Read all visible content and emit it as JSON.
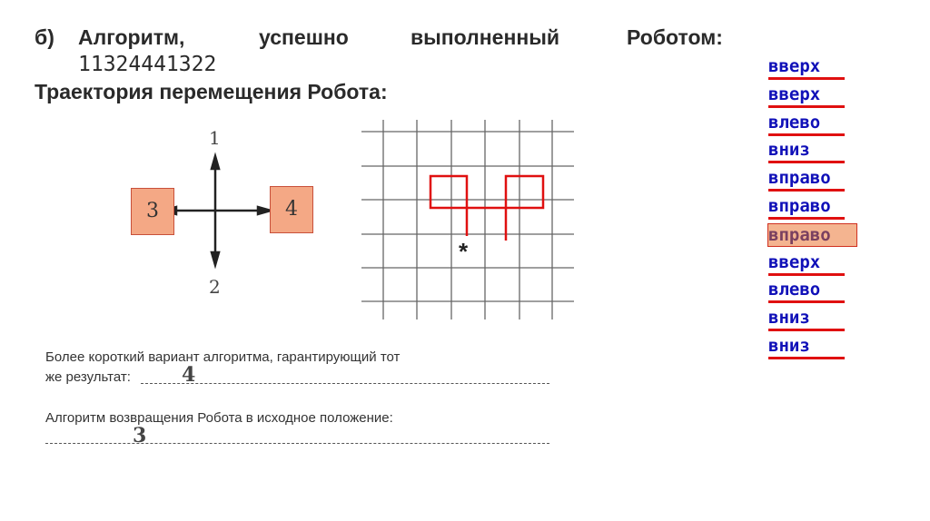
{
  "task": {
    "label": "б)",
    "line1_words": [
      "Алгоритм,",
      "успешно",
      "выполненный",
      "Роботом:"
    ],
    "algorithm": "11324441322",
    "trajectory_title": "Траектория перемещения Робота:"
  },
  "compass": {
    "up": "1",
    "down": "2",
    "left": "3",
    "right": "4"
  },
  "grid": {
    "start_mark": "*",
    "path_color": "#e01010"
  },
  "questions": {
    "q1_line1": "Более короткий вариант алгоритма, гарантирующий тот",
    "q1_line2": "же результат:",
    "q1_answer": "4",
    "q2_line1": "Алгоритм возвращения Робота в исходное положение:",
    "q2_answer": "3"
  },
  "commands": [
    "вверх",
    "вверх",
    "влево",
    "вниз",
    "вправо",
    "вправо",
    "вправо",
    "вверх",
    "влево",
    "вниз",
    "вниз"
  ],
  "highlighted_command_index": 6,
  "colors": {
    "command_text": "#1010b8",
    "underline": "#e01010",
    "highlight": "#f4b490"
  }
}
